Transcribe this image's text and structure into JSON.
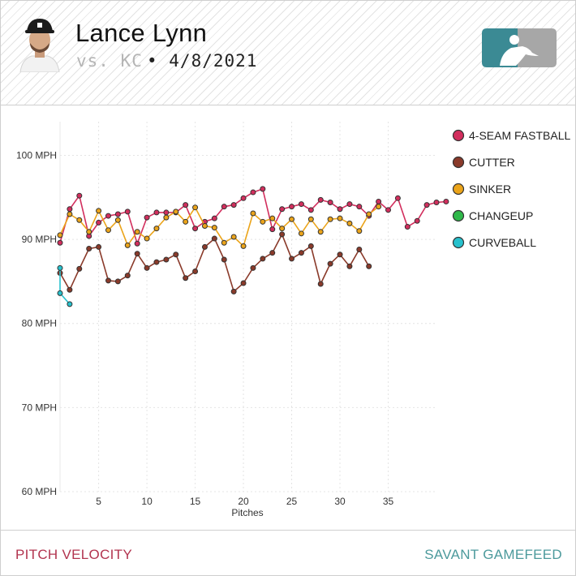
{
  "header": {
    "player_name": "Lance Lynn",
    "matchup": "vs. KC",
    "date": "• 4/8/2021",
    "avatar_icon": "player-headshot-icon",
    "logo_icon": "mlb-logo-icon"
  },
  "footer": {
    "left_label": "PITCH VELOCITY",
    "right_label": "SAVANT GAMEFEED"
  },
  "chart_data": {
    "type": "line",
    "xlabel": "Pitches",
    "ylabel": "",
    "xlim": [
      1,
      40
    ],
    "ylim": [
      60,
      104
    ],
    "x_ticks": [
      5,
      10,
      15,
      20,
      25,
      30,
      35
    ],
    "y_ticks": [
      {
        "value": 60,
        "label": "60 MPH"
      },
      {
        "value": 70,
        "label": "70 MPH"
      },
      {
        "value": 80,
        "label": "80 MPH"
      },
      {
        "value": 90,
        "label": "90 MPH"
      },
      {
        "value": 100,
        "label": "100 MPH"
      }
    ],
    "grid": true,
    "legend_position": "right",
    "series": [
      {
        "name": "4-SEAM FASTBALL",
        "color": "#d22e5d",
        "points": [
          [
            1,
            89.6
          ],
          [
            2,
            93.6
          ],
          [
            3,
            95.2
          ],
          [
            4,
            90.4
          ],
          [
            5,
            92.0
          ],
          [
            6,
            92.8
          ],
          [
            7,
            93.0
          ],
          [
            8,
            93.3
          ],
          [
            9,
            89.5
          ],
          [
            10,
            92.6
          ],
          [
            11,
            93.2
          ],
          [
            12,
            93.2
          ],
          [
            13,
            93.2
          ],
          [
            14,
            94.1
          ],
          [
            15,
            91.3
          ],
          [
            16,
            92.1
          ],
          [
            17,
            92.5
          ],
          [
            18,
            93.9
          ],
          [
            19,
            94.1
          ],
          [
            20,
            94.9
          ],
          [
            21,
            95.6
          ],
          [
            22,
            96.0
          ],
          [
            23,
            91.2
          ],
          [
            24,
            93.6
          ],
          [
            25,
            93.9
          ],
          [
            26,
            94.2
          ],
          [
            27,
            93.5
          ],
          [
            28,
            94.7
          ],
          [
            29,
            94.4
          ],
          [
            30,
            93.6
          ],
          [
            31,
            94.2
          ],
          [
            32,
            93.9
          ],
          [
            33,
            92.8
          ],
          [
            34,
            94.5
          ],
          [
            35,
            93.5
          ],
          [
            36,
            94.9
          ],
          [
            37,
            91.5
          ],
          [
            38,
            92.2
          ],
          [
            39,
            94.1
          ],
          [
            40,
            94.4
          ],
          [
            41,
            94.5
          ]
        ]
      },
      {
        "name": "CUTTER",
        "color": "#8a3a2a",
        "points": [
          [
            1,
            86.0
          ],
          [
            2,
            84.0
          ],
          [
            3,
            86.5
          ],
          [
            4,
            88.9
          ],
          [
            5,
            89.1
          ],
          [
            6,
            85.1
          ],
          [
            7,
            85.0
          ],
          [
            8,
            85.7
          ],
          [
            9,
            88.3
          ],
          [
            10,
            86.6
          ],
          [
            11,
            87.3
          ],
          [
            12,
            87.6
          ],
          [
            13,
            88.2
          ],
          [
            14,
            85.4
          ],
          [
            15,
            86.2
          ],
          [
            16,
            89.1
          ],
          [
            17,
            90.1
          ],
          [
            18,
            87.6
          ],
          [
            19,
            83.8
          ],
          [
            20,
            84.8
          ],
          [
            21,
            86.6
          ],
          [
            22,
            87.7
          ],
          [
            23,
            88.4
          ],
          [
            24,
            90.6
          ],
          [
            25,
            87.7
          ],
          [
            26,
            88.4
          ],
          [
            27,
            89.2
          ],
          [
            28,
            84.7
          ],
          [
            29,
            87.1
          ],
          [
            30,
            88.2
          ],
          [
            31,
            86.8
          ],
          [
            32,
            88.8
          ],
          [
            33,
            86.8
          ]
        ]
      },
      {
        "name": "SINKER",
        "color": "#eba41a",
        "points": [
          [
            1,
            90.5
          ],
          [
            2,
            93.0
          ],
          [
            3,
            92.3
          ],
          [
            4,
            90.9
          ],
          [
            5,
            93.4
          ],
          [
            6,
            91.1
          ],
          [
            7,
            92.3
          ],
          [
            8,
            89.3
          ],
          [
            9,
            90.9
          ],
          [
            10,
            90.1
          ],
          [
            11,
            91.3
          ],
          [
            12,
            92.6
          ],
          [
            13,
            93.3
          ],
          [
            14,
            92.1
          ],
          [
            15,
            93.8
          ],
          [
            16,
            91.6
          ],
          [
            17,
            91.4
          ],
          [
            18,
            89.6
          ],
          [
            19,
            90.3
          ],
          [
            20,
            89.2
          ],
          [
            21,
            93.1
          ],
          [
            22,
            92.1
          ],
          [
            23,
            92.5
          ],
          [
            24,
            91.3
          ],
          [
            25,
            92.4
          ],
          [
            26,
            90.7
          ],
          [
            27,
            92.4
          ],
          [
            28,
            90.9
          ],
          [
            29,
            92.4
          ],
          [
            30,
            92.5
          ],
          [
            31,
            91.9
          ],
          [
            32,
            91.0
          ],
          [
            33,
            93.0
          ],
          [
            34,
            93.9
          ]
        ]
      },
      {
        "name": "CHANGEUP",
        "color": "#2fb84a",
        "points": []
      },
      {
        "name": "CURVEBALL",
        "color": "#27c1cd",
        "points": [
          [
            1,
            86.6
          ],
          [
            1,
            83.6
          ],
          [
            2,
            82.3
          ]
        ]
      }
    ]
  }
}
